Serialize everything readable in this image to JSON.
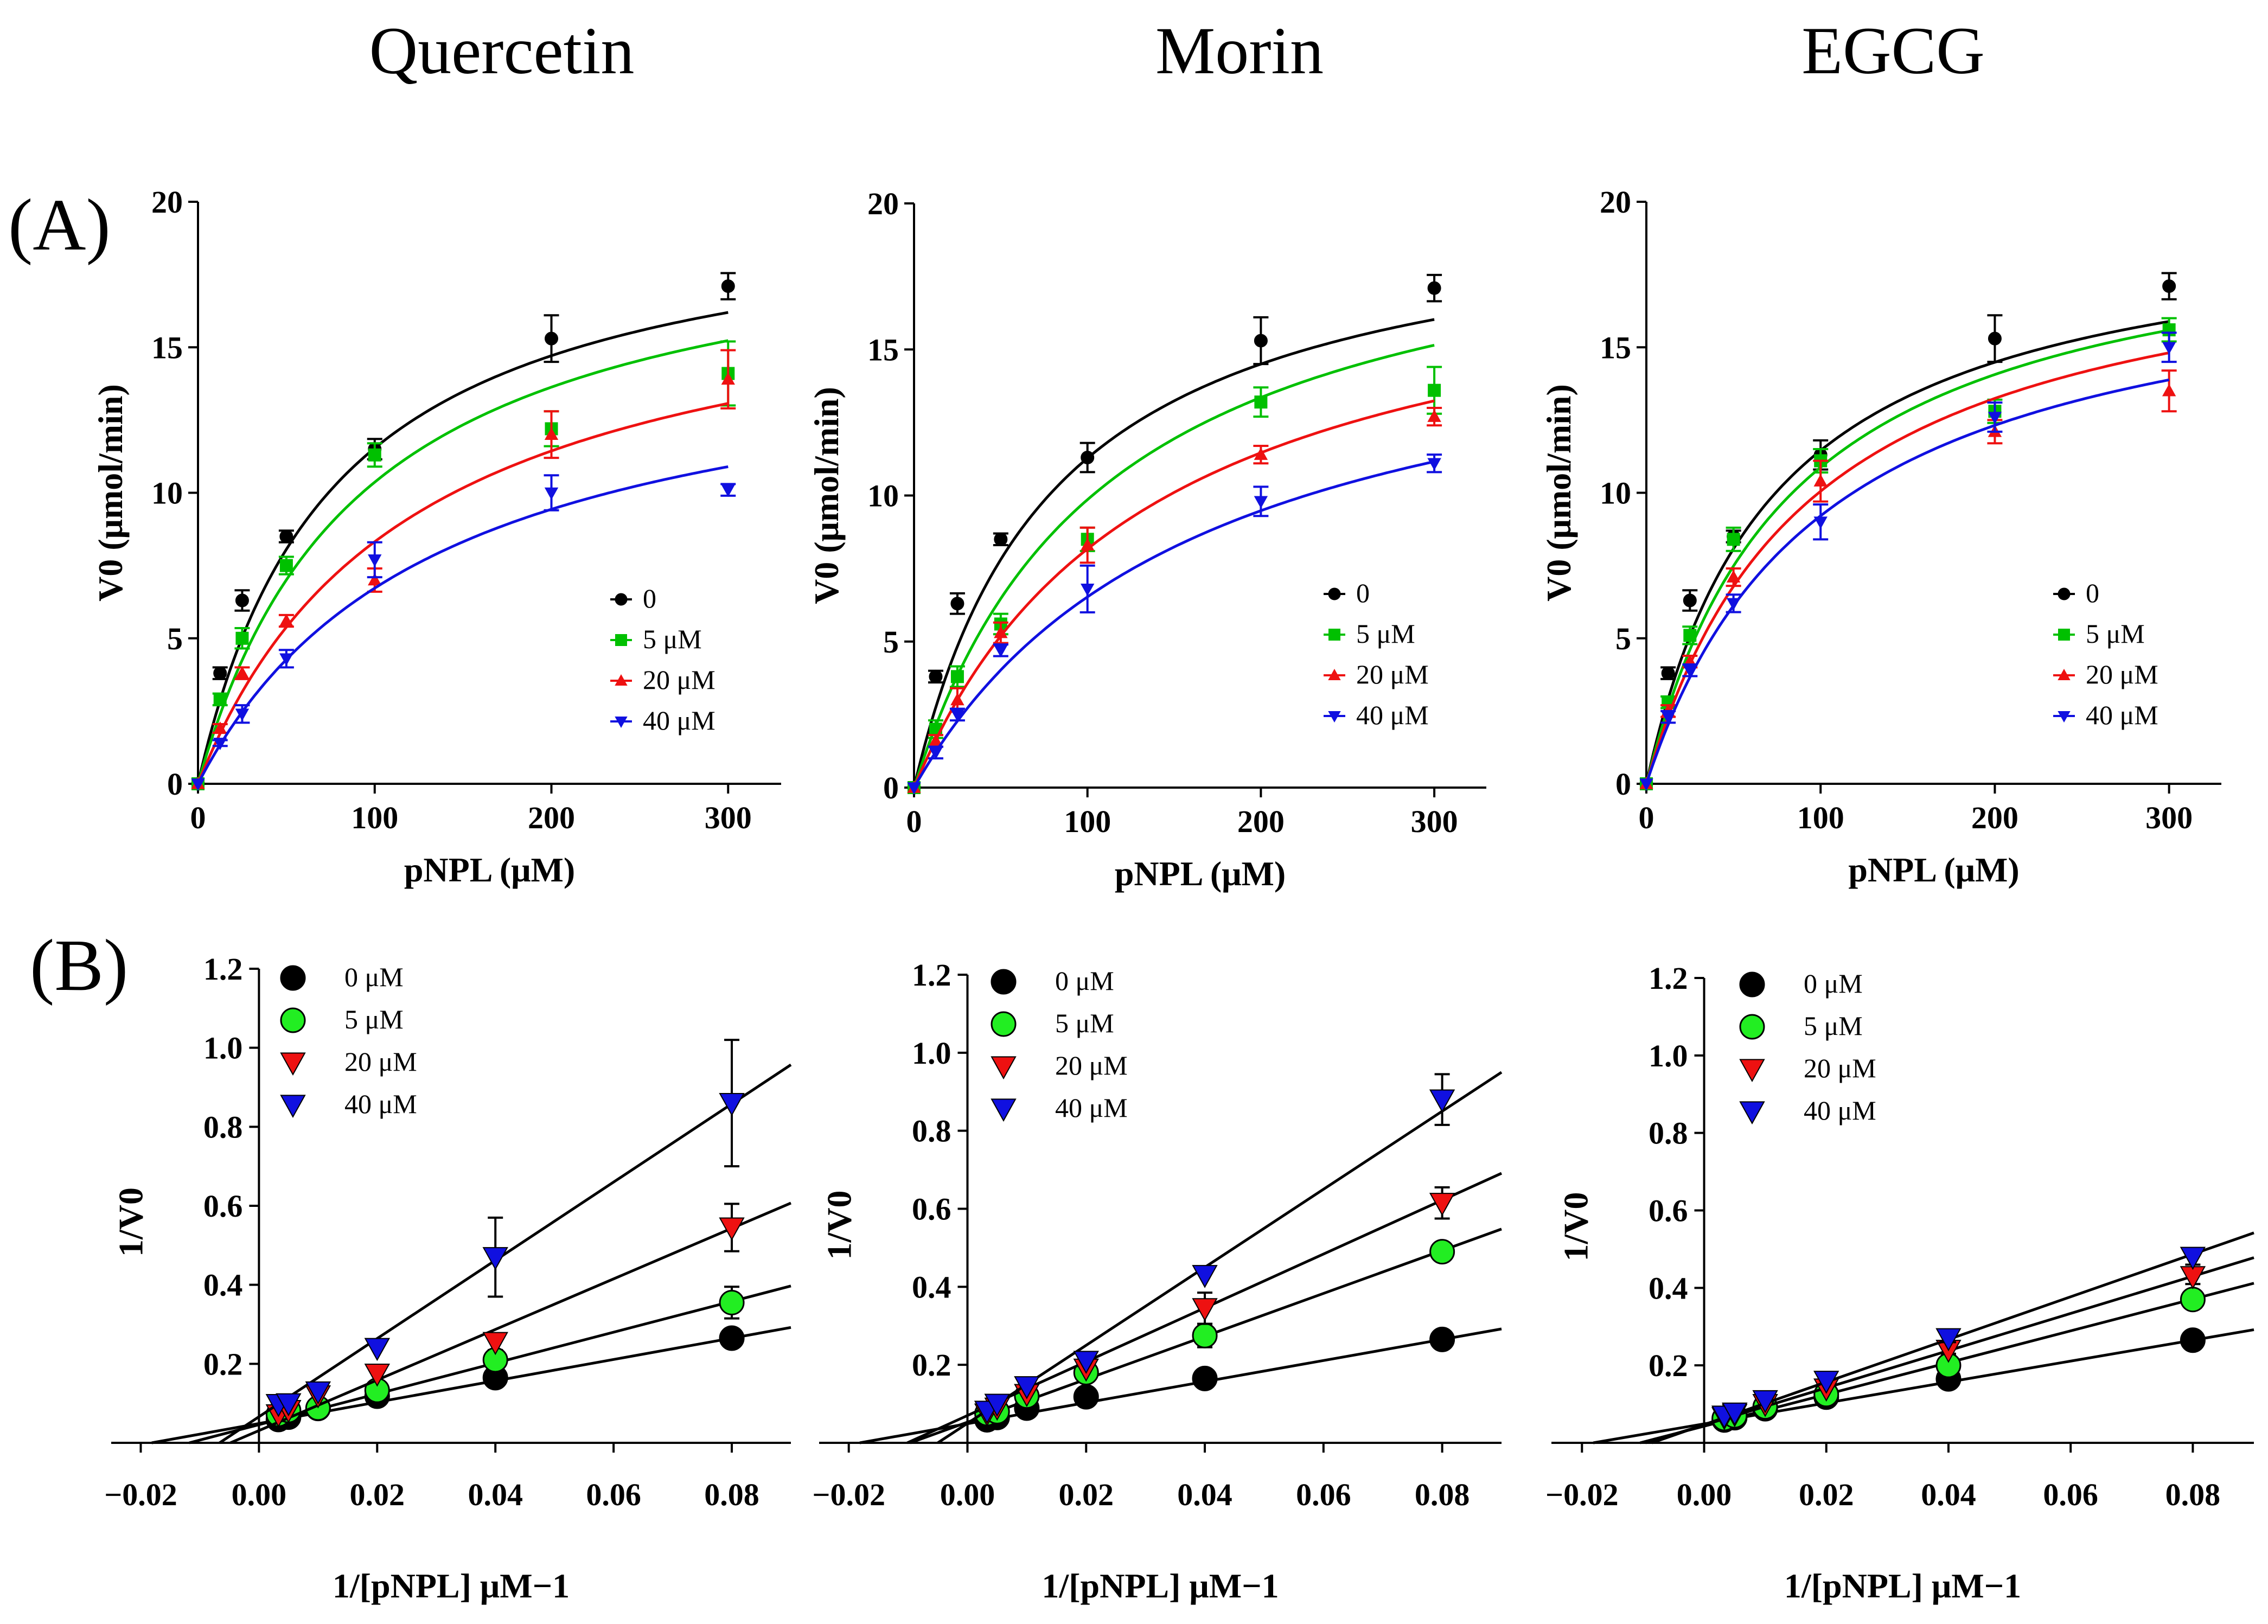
{
  "titles": [
    "Quercetin",
    "Morin",
    "EGCG"
  ],
  "panel_labels": [
    "(A)",
    "(B)"
  ],
  "colors": {
    "c0": "#000000",
    "c5": "#00c000",
    "c20": "#ee1111",
    "c40": "#1010e0",
    "fill0": "#000000",
    "fill5": "#22ee22",
    "fill20": "#ee1111",
    "fill40": "#1010e0"
  },
  "chart_data": [
    {
      "id": "A-Quercetin",
      "type": "scatter",
      "title": "Quercetin",
      "panel": "(A)",
      "xlabel": "pNPL (μM)",
      "ylabel": "V0 (μmol/min)",
      "xlim": [
        0,
        330
      ],
      "ylim": [
        0,
        20
      ],
      "xticks": [
        "0",
        "100",
        "200",
        "300"
      ],
      "yticks": [
        "0",
        "5",
        "10",
        "15",
        "20"
      ],
      "x": [
        0,
        12.5,
        25,
        50,
        100,
        200,
        300
      ],
      "series": [
        {
          "name": "0",
          "values": [
            0,
            3.8,
            6.3,
            8.5,
            11.5,
            15.3,
            17.1
          ],
          "errors": [
            0,
            0.2,
            0.35,
            0.2,
            0.35,
            0.8,
            0.45
          ],
          "fit": {
            "vmax": 20.3,
            "km": 76
          }
        },
        {
          "name": "5 μM",
          "values": [
            0,
            2.9,
            5.0,
            7.5,
            11.3,
            12.2,
            14.1
          ],
          "errors": [
            0,
            0.2,
            0.35,
            0.3,
            0.4,
            0.6,
            1.1
          ],
          "fit": {
            "vmax": 19.9,
            "km": 92
          }
        },
        {
          "name": "20 μM",
          "values": [
            0,
            1.9,
            3.8,
            5.6,
            7.0,
            12.0,
            13.9
          ],
          "errors": [
            0,
            0.15,
            0.2,
            0.2,
            0.4,
            0.8,
            1.0
          ],
          "fit": {
            "vmax": 18.3,
            "km": 120
          }
        },
        {
          "name": "40 μM",
          "values": [
            0,
            1.4,
            2.4,
            4.3,
            7.7,
            10.0,
            10.1
          ],
          "errors": [
            0,
            0.1,
            0.3,
            0.3,
            0.6,
            0.6,
            0.2
          ],
          "fit": {
            "vmax": 15.8,
            "km": 135
          }
        }
      ],
      "legend": [
        "0",
        "5 μM",
        "20 μM",
        "40 μM"
      ]
    },
    {
      "id": "A-Morin",
      "type": "scatter",
      "title": "Morin",
      "panel": "(A)",
      "xlabel": "pNPL (μM)",
      "ylabel": "V0 (μmol/min)",
      "xlim": [
        0,
        330
      ],
      "ylim": [
        0,
        20
      ],
      "xticks": [
        "0",
        "100",
        "200",
        "300"
      ],
      "yticks": [
        "0",
        "5",
        "10",
        "15",
        "20"
      ],
      "x": [
        0,
        12.5,
        25,
        50,
        100,
        200,
        300
      ],
      "series": [
        {
          "name": "0",
          "values": [
            0,
            3.8,
            6.3,
            8.5,
            11.3,
            15.3,
            17.1
          ],
          "errors": [
            0,
            0.2,
            0.35,
            0.2,
            0.5,
            0.8,
            0.45
          ],
          "fit": {
            "vmax": 20.3,
            "km": 80
          }
        },
        {
          "name": "5 μM",
          "values": [
            0,
            2.0,
            3.8,
            5.6,
            8.5,
            13.2,
            13.6
          ],
          "errors": [
            0,
            0.3,
            0.35,
            0.35,
            0.4,
            0.5,
            0.8
          ],
          "fit": {
            "vmax": 20.7,
            "km": 110
          }
        },
        {
          "name": "20 μM",
          "values": [
            0,
            1.6,
            3.0,
            5.3,
            8.3,
            11.4,
            12.7
          ],
          "errors": [
            0,
            0.2,
            0.4,
            0.35,
            0.6,
            0.3,
            0.3
          ],
          "fit": {
            "vmax": 19.2,
            "km": 135
          }
        },
        {
          "name": "40 μM",
          "values": [
            0,
            1.2,
            2.5,
            4.7,
            6.8,
            9.8,
            11.1
          ],
          "errors": [
            0,
            0.2,
            0.2,
            0.2,
            0.8,
            0.5,
            0.3
          ],
          "fit": {
            "vmax": 17.3,
            "km": 165
          }
        }
      ],
      "legend": [
        "0",
        "5 μM",
        "20 μM",
        "40 μM"
      ]
    },
    {
      "id": "A-EGCG",
      "type": "scatter",
      "title": "EGCG",
      "panel": "(A)",
      "xlabel": "pNPL (μM)",
      "ylabel": "V0 (μmol/min)",
      "xlim": [
        0,
        330
      ],
      "ylim": [
        0,
        20
      ],
      "xticks": [
        "0",
        "100",
        "200",
        "300"
      ],
      "yticks": [
        "0",
        "5",
        "10",
        "15",
        "20"
      ],
      "x": [
        0,
        12.5,
        25,
        50,
        100,
        200,
        300
      ],
      "series": [
        {
          "name": "0",
          "values": [
            0,
            3.8,
            6.3,
            8.5,
            11.3,
            15.3,
            17.1
          ],
          "errors": [
            0,
            0.2,
            0.35,
            0.2,
            0.5,
            0.8,
            0.45
          ],
          "fit": {
            "vmax": 19.7,
            "km": 72
          }
        },
        {
          "name": "5 μM",
          "values": [
            0,
            2.8,
            5.1,
            8.4,
            11.1,
            12.8,
            15.6
          ],
          "errors": [
            0,
            0.2,
            0.3,
            0.4,
            0.4,
            0.4,
            0.4
          ],
          "fit": {
            "vmax": 19.9,
            "km": 83
          }
        },
        {
          "name": "20 μM",
          "values": [
            0,
            2.5,
            4.2,
            7.1,
            10.4,
            12.1,
            13.5
          ],
          "errors": [
            0,
            0.2,
            0.2,
            0.3,
            0.7,
            0.4,
            0.7
          ],
          "fit": {
            "vmax": 19.4,
            "km": 93
          }
        },
        {
          "name": "40 μM",
          "values": [
            0,
            2.3,
            3.9,
            6.2,
            9.0,
            12.6,
            15.0
          ],
          "errors": [
            0,
            0.2,
            0.2,
            0.3,
            0.6,
            0.5,
            0.5
          ],
          "fit": {
            "vmax": 18.6,
            "km": 102
          }
        }
      ],
      "legend": [
        "0",
        "5 μM",
        "20 μM",
        "40 μM"
      ]
    },
    {
      "id": "B-Quercetin",
      "type": "scatter",
      "title": "Quercetin",
      "panel": "(B)",
      "xlabel": "1/[pNPL] μM−1",
      "ylabel": "1/V0",
      "xlim": [
        -0.025,
        0.09
      ],
      "ylim": [
        0,
        1.2
      ],
      "xticks": [
        "−0.02",
        "0.00",
        "0.02",
        "0.04",
        "0.06",
        "0.08"
      ],
      "yticks": [
        "0.2",
        "0.4",
        "0.6",
        "0.8",
        "1.0",
        "1.2"
      ],
      "x": [
        0.0033,
        0.005,
        0.01,
        0.02,
        0.04,
        0.08
      ],
      "series": [
        {
          "name": "0 μM",
          "values": [
            0.059,
            0.065,
            0.087,
            0.118,
            0.165,
            0.265
          ],
          "errors": [
            0,
            0,
            0,
            0,
            0,
            0
          ],
          "fit": {
            "slope": 2.7,
            "intercept": 0.049
          }
        },
        {
          "name": "5 μM",
          "values": [
            0.072,
            0.082,
            0.088,
            0.133,
            0.21,
            0.355
          ],
          "errors": [
            0,
            0,
            0,
            0,
            0.025,
            0.04
          ],
          "fit": {
            "slope": 3.9,
            "intercept": 0.046
          }
        },
        {
          "name": "20 μM",
          "values": [
            0.072,
            0.083,
            0.12,
            0.175,
            0.255,
            0.545
          ],
          "errors": [
            0,
            0,
            0,
            0,
            0,
            0.06
          ],
          "fit": {
            "slope": 6.4,
            "intercept": 0.031
          }
        },
        {
          "name": "40 μM",
          "values": [
            0.098,
            0.1,
            0.13,
            0.24,
            0.47,
            0.86
          ],
          "errors": [
            0,
            0,
            0,
            0,
            0.1,
            0.16
          ],
          "fit": {
            "slope": 9.9,
            "intercept": 0.066
          }
        }
      ],
      "legend": [
        "0 μM",
        "5 μM",
        "20 μM",
        "40 μM"
      ]
    },
    {
      "id": "B-Morin",
      "type": "scatter",
      "title": "Morin",
      "panel": "(B)",
      "xlabel": "1/[pNPL] μM−1",
      "ylabel": "1/V0",
      "xlim": [
        -0.025,
        0.09
      ],
      "ylim": [
        0,
        1.2
      ],
      "xticks": [
        "−0.02",
        "0.00",
        "0.02",
        "0.04",
        "0.06",
        "0.08"
      ],
      "yticks": [
        "0.2",
        "0.4",
        "0.6",
        "0.8",
        "1.0",
        "1.2"
      ],
      "x": [
        0.0033,
        0.005,
        0.01,
        0.02,
        0.04,
        0.08
      ],
      "series": [
        {
          "name": "0 μM",
          "values": [
            0.059,
            0.065,
            0.089,
            0.118,
            0.165,
            0.265
          ],
          "errors": [
            0,
            0,
            0,
            0,
            0,
            0
          ],
          "fit": {
            "slope": 2.7,
            "intercept": 0.049
          }
        },
        {
          "name": "5 μM",
          "values": [
            0.075,
            0.08,
            0.12,
            0.18,
            0.275,
            0.49
          ],
          "errors": [
            0,
            0,
            0,
            0,
            0.03,
            0
          ],
          "fit": {
            "slope": 5.5,
            "intercept": 0.053
          }
        },
        {
          "name": "20 μM",
          "values": [
            0.075,
            0.09,
            0.125,
            0.19,
            0.345,
            0.615
          ],
          "errors": [
            0,
            0,
            0,
            0,
            0.04,
            0.04
          ],
          "fit": {
            "slope": 6.9,
            "intercept": 0.07
          }
        },
        {
          "name": "40 μM",
          "values": [
            0.082,
            0.1,
            0.145,
            0.21,
            0.43,
            0.88
          ],
          "errors": [
            0,
            0,
            0,
            0,
            0,
            0.065
          ],
          "fit": {
            "slope": 10.0,
            "intercept": 0.05
          }
        }
      ],
      "legend": [
        "0 μM",
        "5 μM",
        "20 μM",
        "40 μM"
      ]
    },
    {
      "id": "B-EGCG",
      "type": "scatter",
      "title": "EGCG",
      "panel": "(B)",
      "xlabel": "1/[pNPL] μM−1",
      "ylabel": "1/V0",
      "xlim": [
        -0.025,
        0.09
      ],
      "ylim": [
        0,
        1.2
      ],
      "xticks": [
        "−0.02",
        "0.00",
        "0.02",
        "0.04",
        "0.06",
        "0.08"
      ],
      "yticks": [
        "0.2",
        "0.4",
        "0.6",
        "0.8",
        "1.0",
        "1.2"
      ],
      "x": [
        0.0033,
        0.005,
        0.01,
        0.02,
        0.04,
        0.08
      ],
      "series": [
        {
          "name": "0 μM",
          "values": [
            0.059,
            0.065,
            0.088,
            0.118,
            0.165,
            0.265
          ],
          "errors": [
            0,
            0,
            0,
            0,
            0,
            0
          ],
          "fit": {
            "slope": 2.7,
            "intercept": 0.049
          }
        },
        {
          "name": "5 μM",
          "values": [
            0.063,
            0.07,
            0.093,
            0.125,
            0.2,
            0.37
          ],
          "errors": [
            0,
            0,
            0,
            0,
            0.01,
            0.02
          ],
          "fit": {
            "slope": 4.1,
            "intercept": 0.043
          }
        },
        {
          "name": "20 μM",
          "values": [
            0.066,
            0.074,
            0.1,
            0.14,
            0.24,
            0.43
          ],
          "errors": [
            0,
            0,
            0,
            0,
            0.01,
            0.02
          ],
          "fit": {
            "slope": 4.8,
            "intercept": 0.046
          }
        },
        {
          "name": "40 μM",
          "values": [
            0.07,
            0.078,
            0.11,
            0.16,
            0.27,
            0.48
          ],
          "errors": [
            0,
            0,
            0,
            0,
            0.01,
            0.02
          ],
          "fit": {
            "slope": 5.5,
            "intercept": 0.047
          }
        }
      ],
      "legend": [
        "0 μM",
        "5 μM",
        "20 μM",
        "40 μM"
      ]
    }
  ]
}
